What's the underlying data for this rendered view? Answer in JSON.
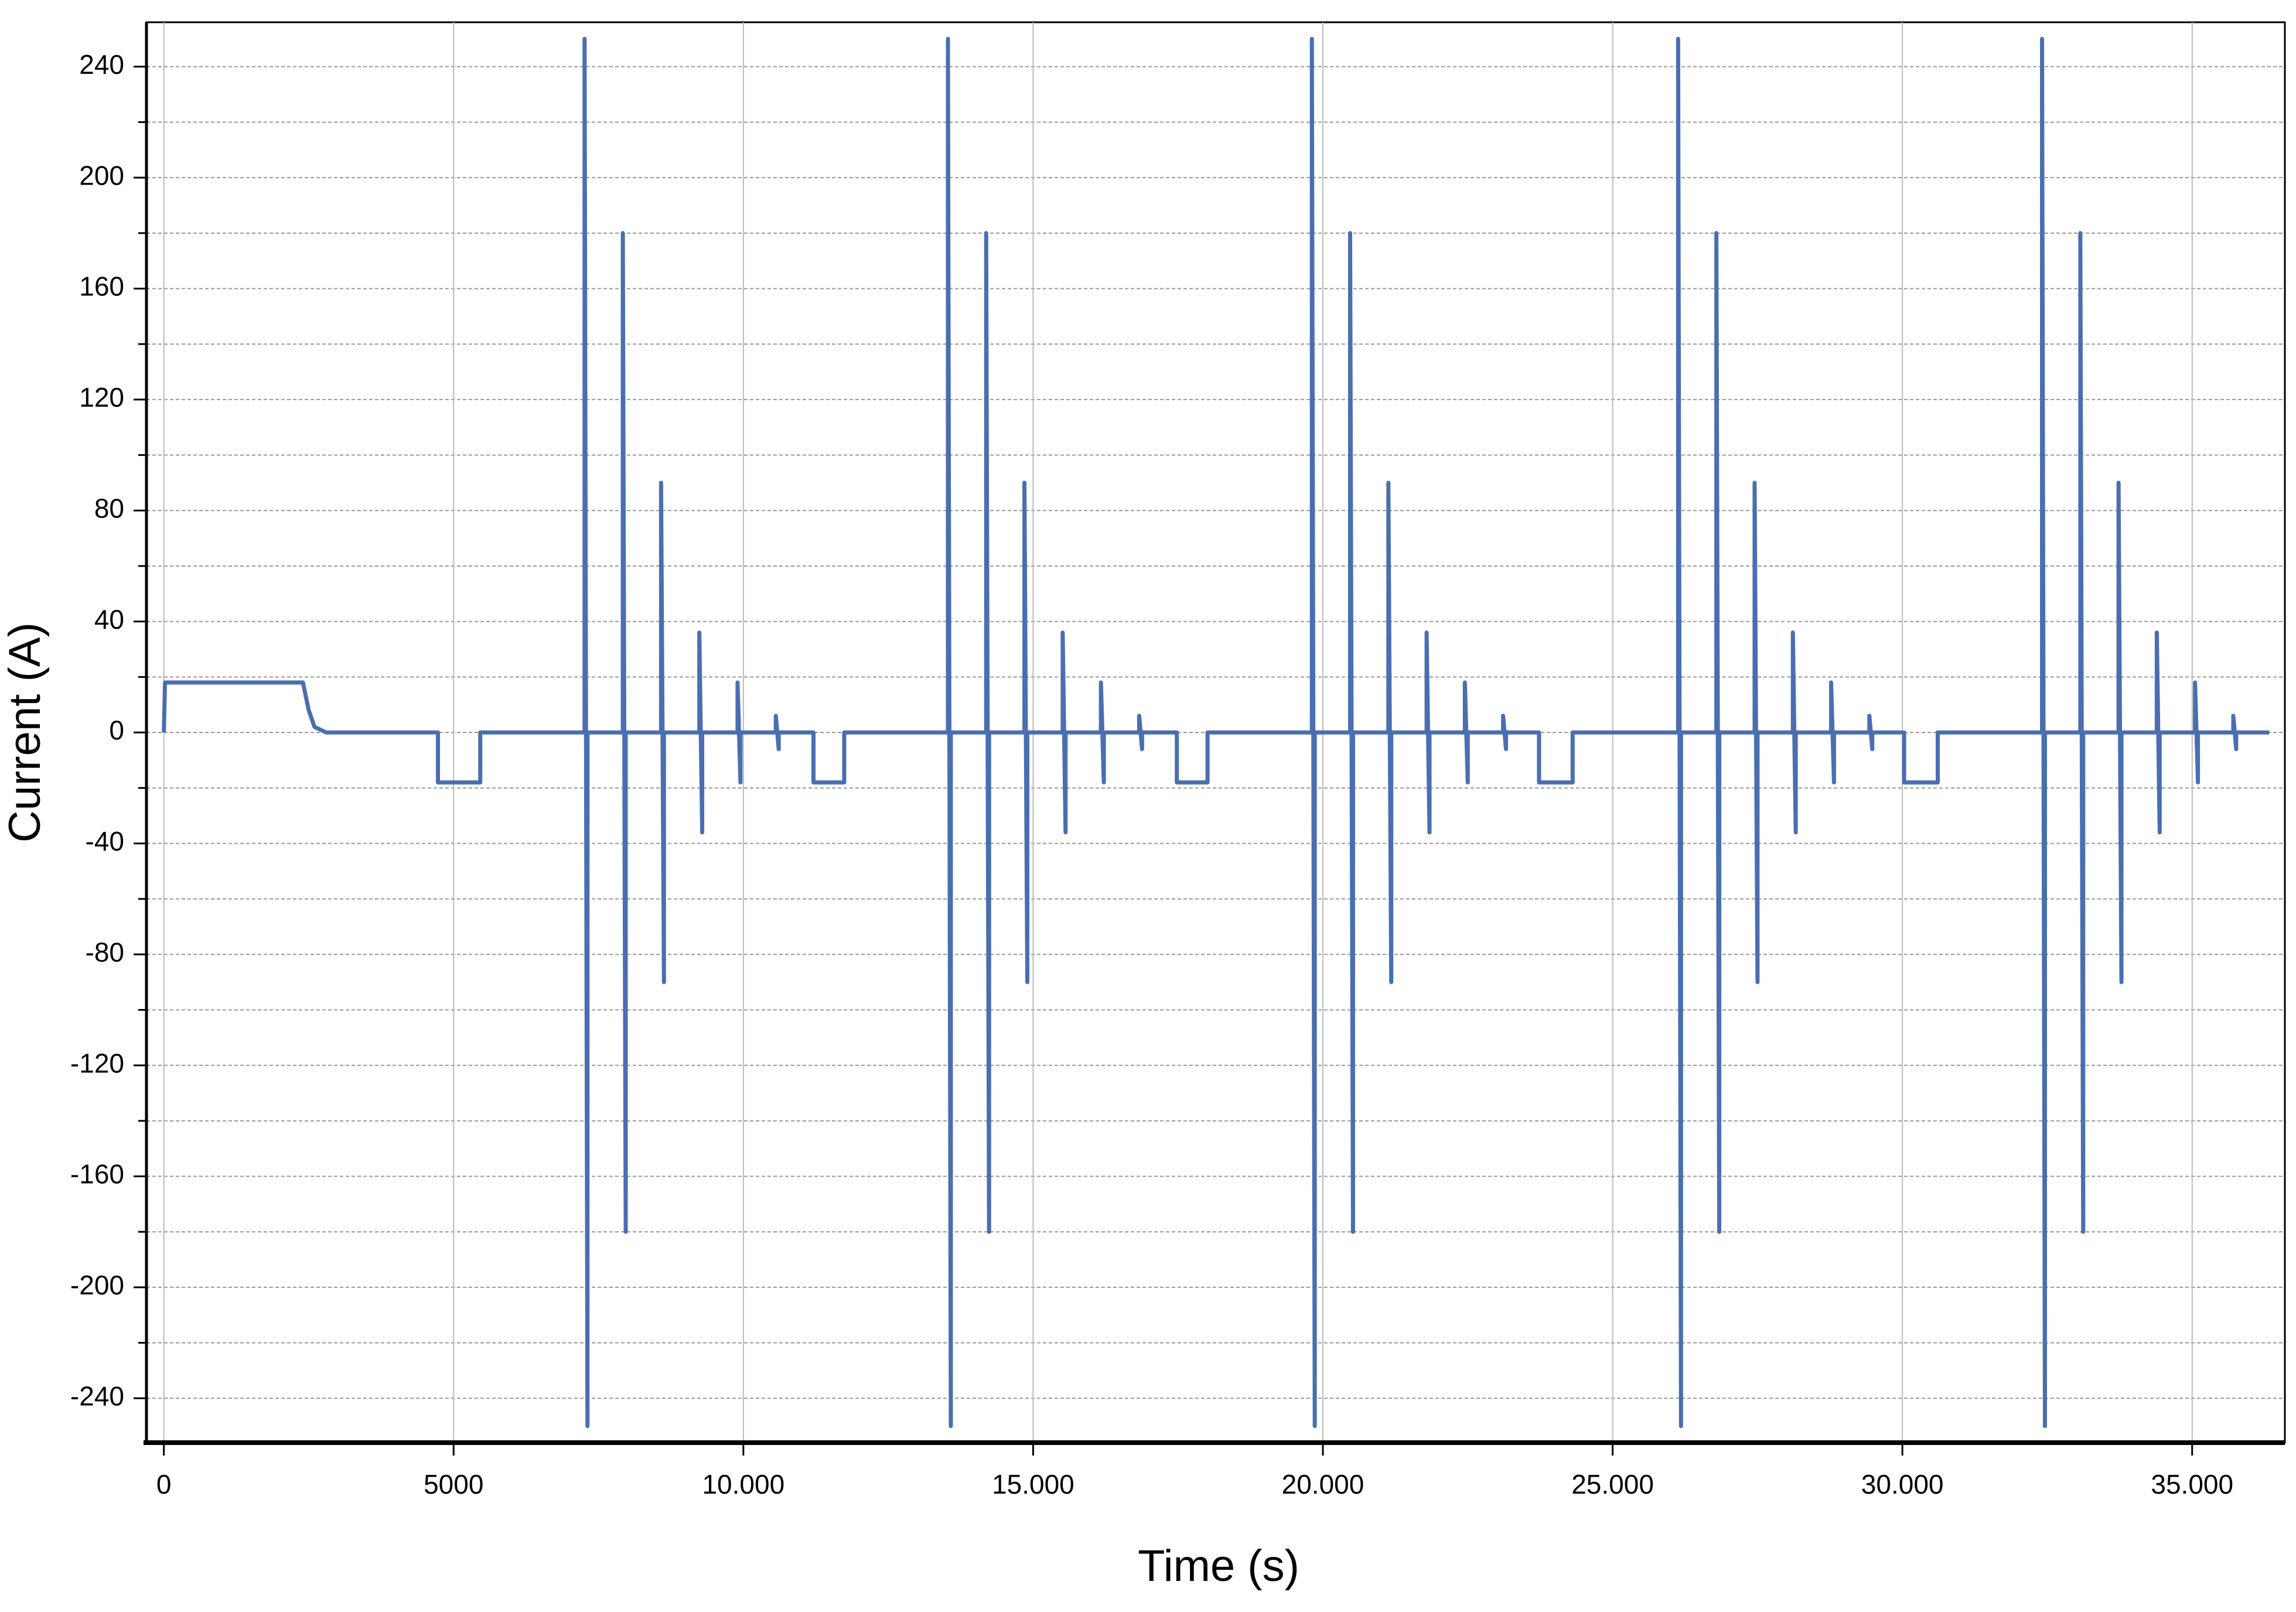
{
  "chart_data": {
    "type": "line",
    "xlabel": "Time (s)",
    "ylabel": "Current (A)",
    "xlim": [
      -300,
      36600
    ],
    "ylim": [
      -256,
      256
    ],
    "xticks": [
      0,
      5000,
      {
        "value": 10000,
        "label": "10.000"
      },
      {
        "value": 15000,
        "label": "15.000"
      },
      {
        "value": 20000,
        "label": "20.000"
      },
      {
        "value": 25000,
        "label": "25.000"
      },
      {
        "value": 30000,
        "label": "30.000"
      },
      {
        "value": 35000,
        "label": "35.000"
      }
    ],
    "yticks": [
      -240,
      -200,
      -160,
      -120,
      -80,
      -40,
      0,
      40,
      80,
      120,
      160,
      200,
      240
    ],
    "yminorticks": [
      -220,
      -180,
      -140,
      -100,
      -60,
      -20,
      20,
      60,
      100,
      140,
      180,
      220
    ],
    "grid": true,
    "series": [
      {
        "color": "#4a6eb0",
        "x": [
          0,
          20,
          2400,
          2500,
          2600,
          2800,
          4730,
          4730,
          5460,
          5460,
          7260,
          7260,
          7310,
          7310,
          7920,
          7920,
          7970,
          7970,
          8580,
          8580,
          8630,
          8630,
          9240,
          9240,
          9290,
          9290,
          9900,
          9900,
          9950,
          9950,
          10560,
          10560,
          10610,
          10610,
          11210,
          11210,
          11740,
          11740,
          13530,
          13530,
          13580,
          13580,
          14190,
          14190,
          14240,
          14240,
          14850,
          14850,
          14900,
          14900,
          15510,
          15510,
          15560,
          15560,
          16170,
          16170,
          16220,
          16220,
          16830,
          16830,
          16880,
          16880,
          17480,
          17480,
          18010,
          18010,
          19810,
          19810,
          19860,
          19860,
          20470,
          20470,
          20520,
          20520,
          21130,
          21130,
          21180,
          21180,
          21790,
          21790,
          21840,
          21840,
          22450,
          22450,
          22500,
          22500,
          23110,
          23110,
          23160,
          23160,
          23730,
          23730,
          24310,
          24310,
          26130,
          26130,
          26180,
          26180,
          26790,
          26790,
          26840,
          26840,
          27450,
          27450,
          27500,
          27500,
          28110,
          28110,
          28160,
          28160,
          28770,
          28770,
          28820,
          28820,
          29430,
          29430,
          29480,
          29480,
          30030,
          30030,
          30610,
          30610,
          32410,
          32410,
          32460,
          32460,
          33070,
          33070,
          33120,
          33120,
          33730,
          33730,
          33780,
          33780,
          34390,
          34390,
          34440,
          34440,
          35050,
          35050,
          35100,
          35100,
          35710,
          35710,
          35760,
          35760,
          36330
        ],
        "values": [
          0,
          18,
          18,
          8,
          2,
          0,
          0,
          -18,
          -18,
          0,
          0,
          250,
          -250,
          0,
          0,
          180,
          -180,
          0,
          0,
          90,
          -90,
          0,
          0,
          36,
          -36,
          0,
          0,
          18,
          -18,
          0,
          0,
          6,
          -6,
          0,
          0,
          -18,
          -18,
          0,
          0,
          250,
          -250,
          0,
          0,
          180,
          -180,
          0,
          0,
          90,
          -90,
          0,
          0,
          36,
          -36,
          0,
          0,
          18,
          -18,
          0,
          0,
          6,
          -6,
          0,
          0,
          -18,
          -18,
          0,
          0,
          250,
          -250,
          0,
          0,
          180,
          -180,
          0,
          0,
          90,
          -90,
          0,
          0,
          36,
          -36,
          0,
          0,
          18,
          -18,
          0,
          0,
          6,
          -6,
          0,
          0,
          -18,
          -18,
          0,
          0,
          250,
          -250,
          0,
          0,
          180,
          -180,
          0,
          0,
          90,
          -90,
          0,
          0,
          36,
          -36,
          0,
          0,
          18,
          -18,
          0,
          0,
          6,
          -6,
          0,
          0,
          -18,
          -18,
          0,
          0,
          250,
          -250,
          0,
          0,
          180,
          -180,
          0,
          0,
          90,
          -90,
          0,
          0,
          36,
          -36,
          0,
          0,
          18,
          -18,
          0,
          0,
          6,
          -6,
          0,
          0
        ]
      }
    ]
  }
}
